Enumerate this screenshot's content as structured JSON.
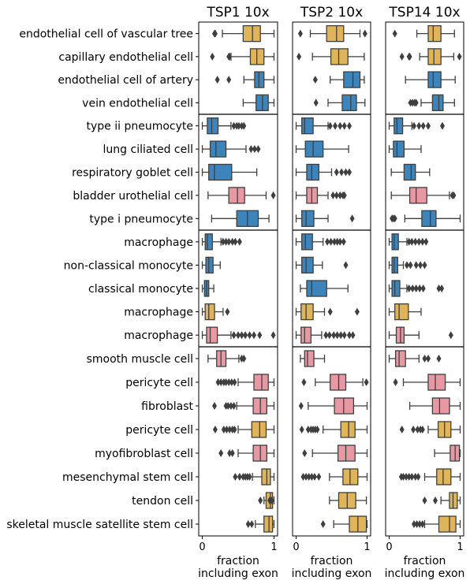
{
  "chart_data": {
    "type": "box",
    "panels": [
      {
        "title": "TSP1 10x",
        "xlabel": "fraction\nincluding exon",
        "xticks": [
          "0",
          "1"
        ],
        "xlim": [
          -0.05,
          1.05
        ]
      },
      {
        "title": "TSP2 10x",
        "xlabel": "fraction\nincluding exon",
        "xticks": [
          "0",
          "1"
        ],
        "xlim": [
          -0.05,
          1.05
        ]
      },
      {
        "title": "TSP14 10x",
        "xlabel": "fraction\nincluding exon",
        "xticks": [
          "0",
          "1"
        ],
        "xlim": [
          -0.05,
          1.05
        ]
      }
    ],
    "groups": [
      {
        "rows": [
          0,
          3
        ]
      },
      {
        "rows": [
          4,
          8
        ]
      },
      {
        "rows": [
          9,
          13
        ]
      },
      {
        "rows": [
          14,
          21
        ]
      }
    ],
    "colors": {
      "yellow": "#e0b55a",
      "blue": "#3d84bb",
      "pink": "#e898a2"
    },
    "rows": [
      {
        "label": "endothelial cell of vascular tree",
        "color": "yellow",
        "boxes": [
          {
            "q1": 0.57,
            "med": 0.7,
            "q3": 0.81,
            "wlo": 0.28,
            "whi": 1.0,
            "out": [
              0.17,
              0.18
            ]
          },
          {
            "q1": 0.43,
            "med": 0.57,
            "q3": 0.67,
            "wlo": 0.2,
            "whi": 0.9,
            "out": [
              0.06,
              0.97
            ]
          },
          {
            "q1": 0.55,
            "med": 0.62,
            "q3": 0.73,
            "wlo": 0.39,
            "whi": 0.92,
            "out": [
              0.08
            ]
          }
        ]
      },
      {
        "label": "capillary endothelial cell",
        "color": "yellow",
        "boxes": [
          {
            "q1": 0.67,
            "med": 0.76,
            "q3": 0.86,
            "wlo": 0.4,
            "whi": 1.0,
            "out": [
              0.14,
              0.37,
              0.38
            ]
          },
          {
            "q1": 0.49,
            "med": 0.6,
            "q3": 0.73,
            "wlo": 0.23,
            "whi": 0.96,
            "out": [
              0.04
            ]
          },
          {
            "q1": 0.55,
            "med": 0.63,
            "q3": 0.73,
            "wlo": 0.43,
            "whi": 0.91,
            "out": [
              0.18,
              0.28,
              0.29,
              0.99
            ]
          }
        ]
      },
      {
        "label": "endothelial cell of artery",
        "color": "blue",
        "boxes": [
          {
            "q1": 0.73,
            "med": 0.79,
            "q3": 0.86,
            "wlo": 0.58,
            "whi": 1.0,
            "out": [
              0.21,
              0.37
            ]
          },
          {
            "q1": 0.67,
            "med": 0.8,
            "q3": 0.9,
            "wlo": 0.48,
            "whi": 0.96,
            "out": [
              0.27
            ]
          },
          {
            "q1": 0.55,
            "med": 0.62,
            "q3": 0.73,
            "wlo": 0.23,
            "whi": 0.93,
            "out": []
          }
        ]
      },
      {
        "label": "vein endothelial cell",
        "color": "blue",
        "boxes": [
          {
            "q1": 0.75,
            "med": 0.84,
            "q3": 0.92,
            "wlo": 0.57,
            "whi": 1.0,
            "out": []
          },
          {
            "q1": 0.65,
            "med": 0.77,
            "q3": 0.85,
            "wlo": 0.45,
            "whi": 0.97,
            "out": [
              0.28
            ]
          },
          {
            "q1": 0.61,
            "med": 0.7,
            "q3": 0.76,
            "wlo": 0.45,
            "whi": 0.92,
            "out": [
              0.3,
              0.33,
              0.36,
              0.38
            ]
          }
        ]
      },
      {
        "label": "type ii pneumocyte",
        "color": "blue",
        "boxes": [
          {
            "q1": 0.07,
            "med": 0.13,
            "q3": 0.22,
            "wlo": 0.0,
            "whi": 0.4,
            "out": [
              0.44,
              0.48,
              0.51,
              0.55,
              0.58
            ]
          },
          {
            "q1": 0.08,
            "med": 0.12,
            "q3": 0.24,
            "wlo": 0.0,
            "whi": 0.45,
            "out": [
              0.48,
              0.55,
              0.62,
              0.68,
              0.75
            ]
          },
          {
            "q1": 0.07,
            "med": 0.11,
            "q3": 0.19,
            "wlo": 0.0,
            "whi": 0.32,
            "out": [
              0.35,
              0.42,
              0.48,
              0.55,
              0.75
            ]
          }
        ]
      },
      {
        "label": "lung ciliated cell",
        "color": "blue",
        "boxes": [
          {
            "q1": 0.11,
            "med": 0.19,
            "q3": 0.33,
            "wlo": 0.0,
            "whi": 0.61,
            "out": [
              0.68,
              0.73,
              0.78
            ]
          },
          {
            "q1": 0.13,
            "med": 0.24,
            "q3": 0.38,
            "wlo": 0.0,
            "whi": 0.74,
            "out": []
          },
          {
            "q1": 0.06,
            "med": 0.11,
            "q3": 0.21,
            "wlo": 0.0,
            "whi": 0.45,
            "out": []
          }
        ]
      },
      {
        "label": "respiratory goblet cell",
        "color": "blue",
        "boxes": [
          {
            "q1": 0.09,
            "med": 0.17,
            "q3": 0.41,
            "wlo": 0.0,
            "whi": 0.76,
            "out": []
          },
          {
            "q1": 0.15,
            "med": 0.22,
            "q3": 0.32,
            "wlo": 0.0,
            "whi": 0.5,
            "out": [
              0.57,
              0.64,
              0.7,
              0.75
            ]
          },
          {
            "q1": 0.21,
            "med": 0.31,
            "q3": 0.37,
            "wlo": 0.03,
            "whi": 0.57,
            "out": []
          }
        ]
      },
      {
        "label": "bladder urothelial cell",
        "color": "pink",
        "boxes": [
          {
            "q1": 0.37,
            "med": 0.49,
            "q3": 0.59,
            "wlo": 0.08,
            "whi": 0.89,
            "out": [
              0.99
            ]
          },
          {
            "q1": 0.15,
            "med": 0.22,
            "q3": 0.3,
            "wlo": 0.0,
            "whi": 0.45,
            "out": [
              0.52,
              0.57,
              0.62,
              0.66,
              0.68
            ]
          },
          {
            "q1": 0.29,
            "med": 0.38,
            "q3": 0.53,
            "wlo": 0.03,
            "whi": 0.85,
            "out": [
              0.89,
              0.91
            ]
          }
        ]
      },
      {
        "label": "type i pneumocyte",
        "color": "blue",
        "boxes": [
          {
            "q1": 0.48,
            "med": 0.63,
            "q3": 0.78,
            "wlo": 0.13,
            "whi": 0.93,
            "out": []
          },
          {
            "q1": 0.08,
            "med": 0.14,
            "q3": 0.25,
            "wlo": 0.0,
            "whi": 0.45,
            "out": [
              0.79
            ]
          },
          {
            "q1": 0.46,
            "med": 0.58,
            "q3": 0.66,
            "wlo": 0.22,
            "whi": 1.0,
            "out": [
              0.04,
              0.06,
              0.08
            ]
          }
        ]
      },
      {
        "label": "macrophage",
        "color": "blue",
        "boxes": [
          {
            "q1": 0.04,
            "med": 0.07,
            "q3": 0.14,
            "wlo": 0.0,
            "whi": 0.26,
            "out": [
              0.29,
              0.33,
              0.37,
              0.42,
              0.46,
              0.52
            ]
          },
          {
            "q1": 0.08,
            "med": 0.13,
            "q3": 0.23,
            "wlo": 0.0,
            "whi": 0.38,
            "out": [
              0.44,
              0.49,
              0.54,
              0.58,
              0.62,
              0.67
            ]
          },
          {
            "q1": 0.04,
            "med": 0.07,
            "q3": 0.13,
            "wlo": 0.0,
            "whi": 0.25,
            "out": [
              0.28,
              0.32,
              0.37,
              0.42,
              0.47,
              0.52
            ]
          }
        ]
      },
      {
        "label": "non-classical monocyte",
        "color": "blue",
        "boxes": [
          {
            "q1": 0.05,
            "med": 0.09,
            "q3": 0.15,
            "wlo": 0.0,
            "whi": 0.25,
            "out": []
          },
          {
            "q1": 0.08,
            "med": 0.14,
            "q3": 0.24,
            "wlo": 0.0,
            "whi": 0.37,
            "out": [
              0.7
            ]
          },
          {
            "q1": 0.04,
            "med": 0.07,
            "q3": 0.12,
            "wlo": 0.0,
            "whi": 0.2,
            "out": [
              0.25,
              0.3,
              0.38,
              0.44,
              0.5
            ]
          }
        ]
      },
      {
        "label": "classical monocyte",
        "color": "blue",
        "boxes": [
          {
            "q1": 0.03,
            "med": 0.06,
            "q3": 0.09,
            "wlo": 0.0,
            "whi": 0.16,
            "out": []
          },
          {
            "q1": 0.15,
            "med": 0.22,
            "q3": 0.43,
            "wlo": 0.06,
            "whi": 0.73,
            "out": []
          },
          {
            "q1": 0.04,
            "med": 0.08,
            "q3": 0.15,
            "wlo": 0.0,
            "whi": 0.25,
            "out": [
              0.28,
              0.33,
              0.38,
              0.43,
              0.48,
              0.7,
              0.74
            ]
          }
        ]
      },
      {
        "label": "macrophage",
        "color": "yellow",
        "boxes": [
          {
            "q1": 0.04,
            "med": 0.09,
            "q3": 0.17,
            "wlo": 0.0,
            "whi": 0.29,
            "out": [
              0.35
            ]
          },
          {
            "q1": 0.07,
            "med": 0.14,
            "q3": 0.24,
            "wlo": 0.0,
            "whi": 0.4,
            "out": [
              0.48,
              0.86
            ]
          },
          {
            "q1": 0.08,
            "med": 0.14,
            "q3": 0.27,
            "wlo": 0.0,
            "whi": 0.45,
            "out": []
          }
        ]
      },
      {
        "label": "macrophage",
        "color": "pink",
        "boxes": [
          {
            "q1": 0.06,
            "med": 0.11,
            "q3": 0.21,
            "wlo": 0.0,
            "whi": 0.4,
            "out": [
              0.44,
              0.5,
              0.55,
              0.6,
              0.66,
              0.72,
              0.8,
              0.99
            ]
          },
          {
            "q1": 0.07,
            "med": 0.12,
            "q3": 0.21,
            "wlo": 0.0,
            "whi": 0.36,
            "out": [
              0.42,
              0.47,
              0.53,
              0.58,
              0.63,
              0.68,
              0.75,
              0.8
            ]
          },
          {
            "q1": 0.1,
            "med": 0.16,
            "q3": 0.21,
            "wlo": 0.0,
            "whi": 0.42,
            "out": [
              0.87
            ]
          }
        ]
      },
      {
        "label": "smooth muscle cell",
        "color": "pink",
        "boxes": [
          {
            "q1": 0.2,
            "med": 0.26,
            "q3": 0.33,
            "wlo": 0.08,
            "whi": 0.51,
            "out": [
              0.55,
              0.58
            ]
          },
          {
            "q1": 0.12,
            "med": 0.16,
            "q3": 0.25,
            "wlo": 0.06,
            "whi": 0.4,
            "out": []
          },
          {
            "q1": 0.09,
            "med": 0.14,
            "q3": 0.23,
            "wlo": 0.0,
            "whi": 0.42,
            "out": [
              0.5,
              0.55,
              0.7
            ]
          }
        ]
      },
      {
        "label": "pericyte cell",
        "color": "pink",
        "boxes": [
          {
            "q1": 0.72,
            "med": 0.83,
            "q3": 0.92,
            "wlo": 0.5,
            "whi": 1.0,
            "out": [
              0.22,
              0.26,
              0.3,
              0.33,
              0.37,
              0.41,
              0.45
            ]
          },
          {
            "q1": 0.48,
            "med": 0.6,
            "q3": 0.7,
            "wlo": 0.27,
            "whi": 0.94,
            "out": [
              0.11,
              0.99
            ]
          },
          {
            "q1": 0.55,
            "med": 0.65,
            "q3": 0.79,
            "wlo": 0.2,
            "whi": 1.0,
            "out": [
              0.09
            ]
          }
        ]
      },
      {
        "label": "fibroblast",
        "color": "pink",
        "boxes": [
          {
            "q1": 0.71,
            "med": 0.81,
            "q3": 0.9,
            "wlo": 0.48,
            "whi": 1.0,
            "out": [
              0.17,
              0.33,
              0.36,
              0.4,
              0.44
            ]
          },
          {
            "q1": 0.54,
            "med": 0.67,
            "q3": 0.81,
            "wlo": 0.17,
            "whi": 1.0,
            "out": [
              0.07
            ]
          },
          {
            "q1": 0.61,
            "med": 0.71,
            "q3": 0.85,
            "wlo": 0.29,
            "whi": 1.0,
            "out": []
          }
        ]
      },
      {
        "label": "pericyte cell",
        "color": "yellow",
        "boxes": [
          {
            "q1": 0.69,
            "med": 0.8,
            "q3": 0.89,
            "wlo": 0.5,
            "whi": 1.0,
            "out": [
              0.18,
              0.3,
              0.34,
              0.38,
              0.42,
              0.45
            ]
          },
          {
            "q1": 0.63,
            "med": 0.74,
            "q3": 0.83,
            "wlo": 0.38,
            "whi": 1.0,
            "out": [
              0.08,
              0.17,
              0.21,
              0.24,
              0.27,
              0.3
            ]
          },
          {
            "q1": 0.69,
            "med": 0.78,
            "q3": 0.87,
            "wlo": 0.55,
            "whi": 1.0,
            "out": [
              0.18,
              0.34,
              0.4,
              0.44,
              0.47
            ]
          }
        ]
      },
      {
        "label": "myofibroblast cell",
        "color": "pink",
        "boxes": [
          {
            "q1": 0.71,
            "med": 0.81,
            "q3": 0.9,
            "wlo": 0.5,
            "whi": 1.0,
            "out": [
              0.26,
              0.38,
              0.42
            ]
          },
          {
            "q1": 0.59,
            "med": 0.7,
            "q3": 0.83,
            "wlo": 0.23,
            "whi": 1.0,
            "out": [
              0.12
            ]
          },
          {
            "q1": 0.86,
            "med": 0.93,
            "q3": 0.99,
            "wlo": 0.64,
            "whi": 1.0,
            "out": []
          }
        ]
      },
      {
        "label": "mesenchymal stem cell",
        "color": "yellow",
        "boxes": [
          {
            "q1": 0.83,
            "med": 0.9,
            "q3": 0.95,
            "wlo": 0.7,
            "whi": 1.0,
            "out": [
              0.46,
              0.52,
              0.57,
              0.6,
              0.63,
              0.66
            ]
          },
          {
            "q1": 0.66,
            "med": 0.76,
            "q3": 0.87,
            "wlo": 0.47,
            "whi": 1.0,
            "out": [
              0.1,
              0.14,
              0.18,
              0.22,
              0.26,
              0.32
            ]
          },
          {
            "q1": 0.67,
            "med": 0.76,
            "q3": 0.87,
            "wlo": 0.5,
            "whi": 1.0,
            "out": [
              0.17,
              0.2,
              0.24,
              0.28,
              0.32,
              0.37,
              0.41
            ]
          }
        ]
      },
      {
        "label": "tendon cell",
        "color": "yellow",
        "boxes": [
          {
            "q1": 0.89,
            "med": 0.95,
            "q3": 0.98,
            "wlo": 0.86,
            "whi": 1.0,
            "out": [
              0.81,
              0.94,
              0.97
            ]
          },
          {
            "q1": 0.6,
            "med": 0.72,
            "q3": 0.84,
            "wlo": 0.47,
            "whi": 0.99,
            "out": []
          },
          {
            "q1": 0.85,
            "med": 0.9,
            "q3": 0.96,
            "wlo": 0.73,
            "whi": 1.0,
            "out": [
              0.5,
              0.65
            ]
          }
        ]
      },
      {
        "label": "skeletal muscle satellite stem cell",
        "color": "yellow",
        "boxes": [
          {
            "q1": 0.86,
            "med": 0.93,
            "q3": 0.98,
            "wlo": 0.74,
            "whi": 1.0,
            "out": [
              0.64,
              0.69
            ]
          },
          {
            "q1": 0.75,
            "med": 0.87,
            "q3": 0.99,
            "wlo": 0.53,
            "whi": 1.0,
            "out": [
              0.38
            ]
          },
          {
            "q1": 0.7,
            "med": 0.85,
            "q3": 0.94,
            "wlo": 0.5,
            "whi": 1.0,
            "out": [
              0.35,
              0.39,
              0.43,
              0.47
            ]
          }
        ]
      }
    ]
  }
}
